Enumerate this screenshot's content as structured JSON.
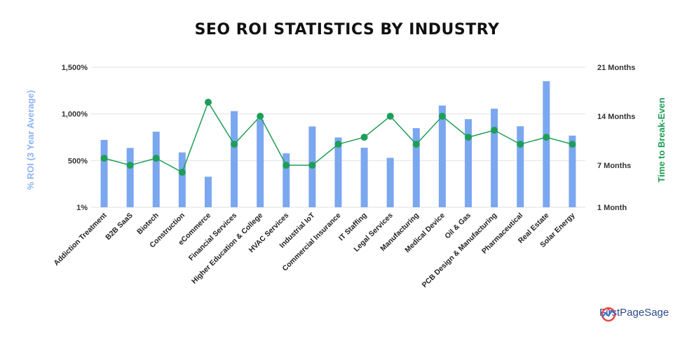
{
  "colors": {
    "bar": "#7ba7f0",
    "line": "#1e9e57",
    "grid": "#e2e2e2",
    "left_axis_label": "#8eb4f2",
    "right_axis_label": "#1e9e57"
  },
  "chart_data": {
    "type": "bar+line",
    "title": "SEO ROI STATISTICS BY INDUSTRY",
    "categories": [
      "Addiction Treatment",
      "B2B SaaS",
      "Biotech",
      "Construction",
      "eCommerce",
      "Financial Services",
      "Higher Education & College",
      "HVAC Services",
      "Industrial IoT",
      "Commercial Insurance",
      "IT Staffing",
      "Legal Services",
      "Manufacturing",
      "Medical Device",
      "Oil & Gas",
      "PCB Design & Manufacturing",
      "Pharmaceutical",
      "Real Estate",
      "Solar Energy"
    ],
    "left_axis": {
      "label": "% ROI (3 Year Average)",
      "ticks": [
        "1%",
        "500%",
        "1,000%",
        "1,500%"
      ],
      "tick_values": [
        1,
        500,
        1000,
        1500
      ]
    },
    "right_axis": {
      "label": "Time to Break-Even",
      "ticks": [
        "1 Month",
        "7 Months",
        "14 Months",
        "21 Months"
      ],
      "tick_values": [
        1,
        7,
        14,
        21
      ]
    },
    "series": [
      {
        "kind": "bar",
        "axis": "left",
        "values": [
          722,
          636,
          810,
          588,
          328,
          1030,
          940,
          578,
          866,
          748,
          638,
          530,
          848,
          1090,
          944,
          1056,
          868,
          1350,
          768
        ]
      },
      {
        "kind": "line",
        "axis": "right",
        "values": [
          8,
          7,
          8,
          6,
          16,
          10,
          14,
          7,
          7,
          10,
          11,
          14,
          10,
          14,
          11,
          12,
          10,
          11,
          10
        ]
      }
    ],
    "grid": true
  },
  "logo": {
    "text": "FirstPageSage"
  }
}
